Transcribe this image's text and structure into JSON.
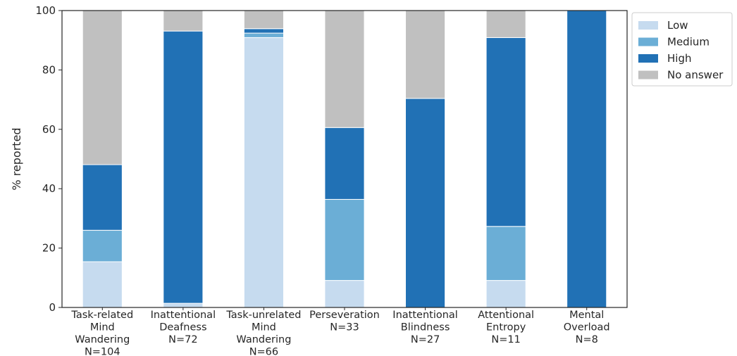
{
  "chart_data": {
    "type": "bar",
    "stacked": true,
    "ylabel": "% reported",
    "xlabel": "",
    "ylim": [
      0,
      100
    ],
    "yticks": [
      0,
      20,
      40,
      60,
      80,
      100
    ],
    "grid": false,
    "legend_position": "top-right",
    "categories": [
      [
        "Task-related",
        "Mind",
        "Wandering",
        "N=104"
      ],
      [
        "Inattentional",
        "Deafness",
        "N=72"
      ],
      [
        "Task-unrelated",
        "Mind",
        "Wandering",
        "N=66"
      ],
      [
        "Perseveration",
        "N=33"
      ],
      [
        "Inattentional",
        "Blindness",
        "N=27"
      ],
      [
        "Attentional",
        "Entropy",
        "N=11"
      ],
      [
        "Mental",
        "Overload",
        "N=8"
      ]
    ],
    "series": [
      {
        "name": "Low",
        "color": "#c6dbef",
        "values": [
          15.4,
          1.4,
          90.9,
          9.1,
          0,
          9.1,
          0
        ]
      },
      {
        "name": "Medium",
        "color": "#6baed6",
        "values": [
          10.6,
          0,
          1.5,
          27.3,
          0,
          18.2,
          0
        ]
      },
      {
        "name": "High",
        "color": "#2171b5",
        "values": [
          22.1,
          91.7,
          1.5,
          24.2,
          70.4,
          63.6,
          100
        ]
      },
      {
        "name": "No answer",
        "color": "#c0c0c0",
        "values": [
          51.9,
          6.9,
          6.1,
          39.4,
          29.6,
          9.1,
          0
        ]
      }
    ]
  }
}
